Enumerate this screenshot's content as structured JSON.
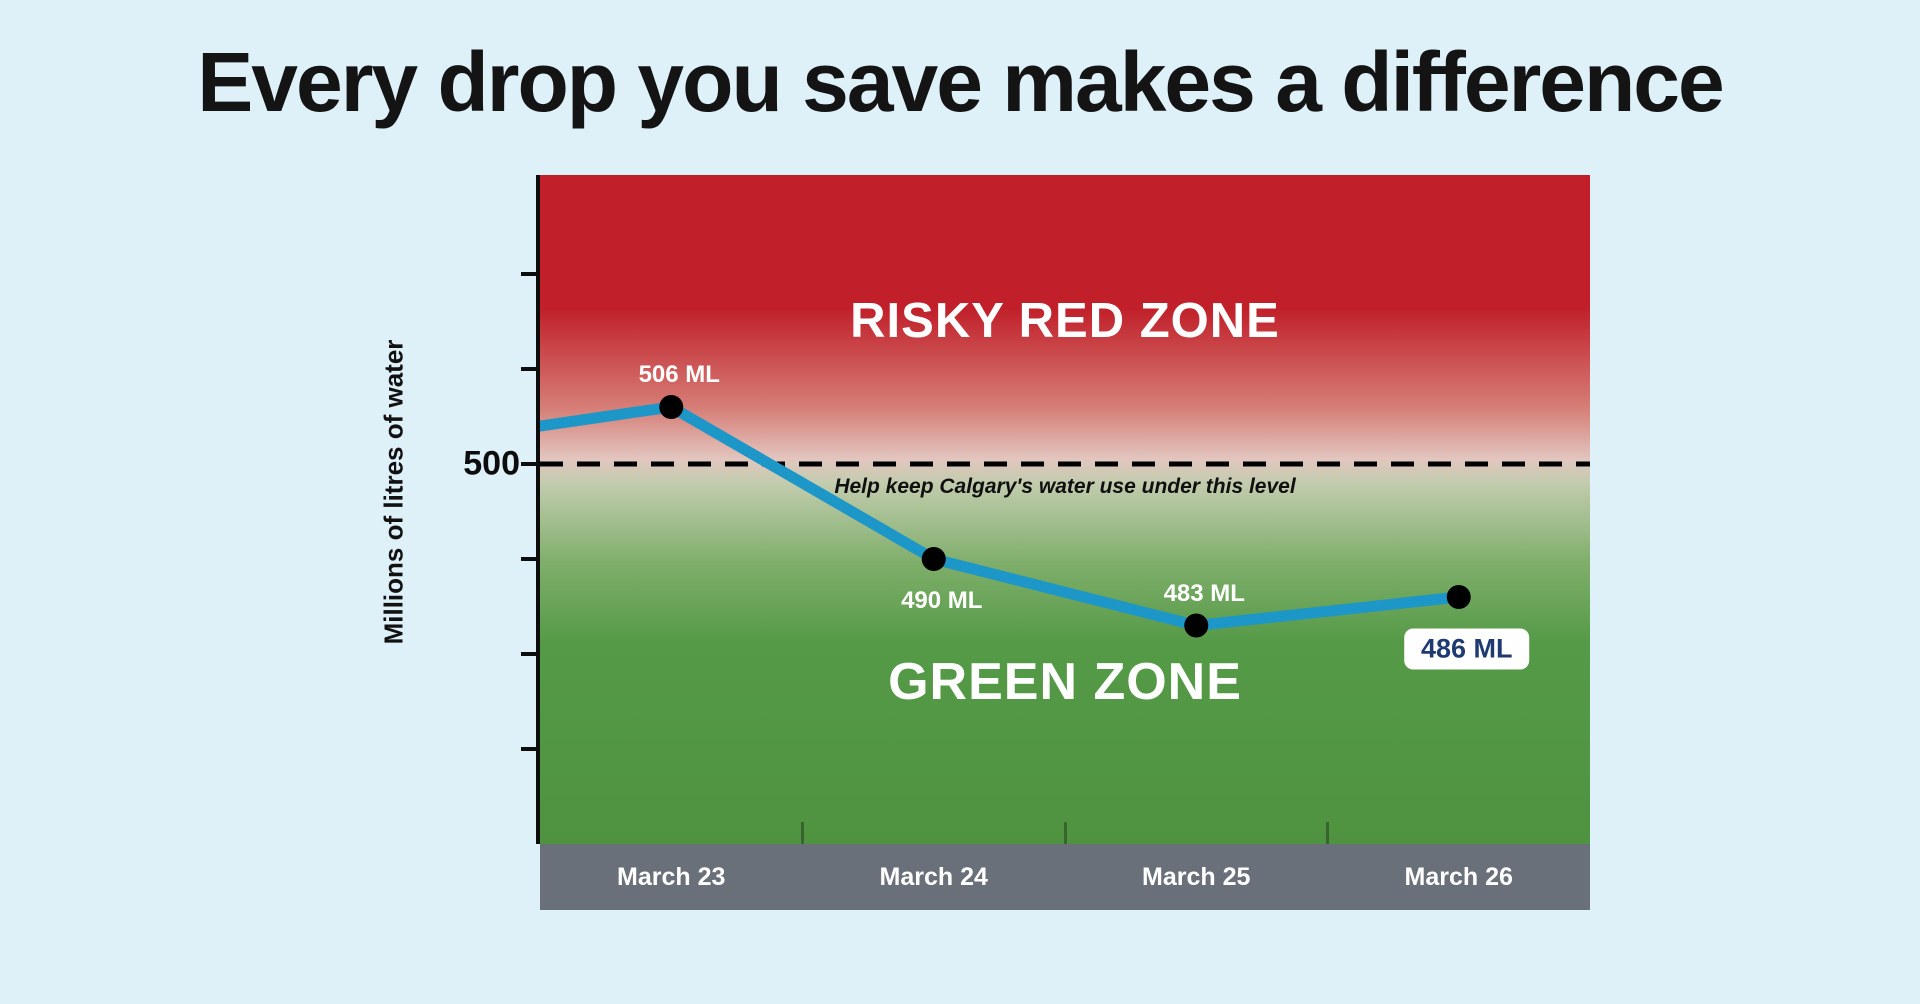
{
  "page": {
    "title": "Every drop you save makes a difference",
    "background_color": "#def0f8"
  },
  "chart_data": {
    "type": "line",
    "title": "Every drop you save makes a difference",
    "ylabel": "Millions of litres of water",
    "unit": "ML",
    "categories": [
      "March 23",
      "March 24",
      "March 25",
      "March 26"
    ],
    "values": [
      506,
      490,
      483,
      486
    ],
    "point_labels": [
      "506 ML",
      "490 ML",
      "483 ML",
      "486 ML"
    ],
    "label_placement": [
      "above",
      "below",
      "above",
      "below-badge"
    ],
    "lead_in_value": 504,
    "threshold": {
      "value": 500,
      "tick_label": "500",
      "annotation": "Help keep Calgary's water use under this level"
    },
    "zones": [
      {
        "label": "RISKY RED ZONE",
        "color": "#c1202a",
        "position": "above-threshold"
      },
      {
        "label": "GREEN ZONE",
        "color": "#4f9340",
        "position": "below-threshold"
      }
    ],
    "yticks": [
      520,
      510,
      500,
      490,
      480,
      470
    ],
    "ylim": [
      460,
      530
    ],
    "line_color": "#1d96c8",
    "point_color": "#000000",
    "threshold_line_color": "#000000",
    "grid": false,
    "legend": false
  },
  "colors": {
    "background": "#def0f8",
    "x_axis_bar": "#6a707a",
    "badge_background": "#ffffff",
    "badge_text": "#1e3a70"
  }
}
